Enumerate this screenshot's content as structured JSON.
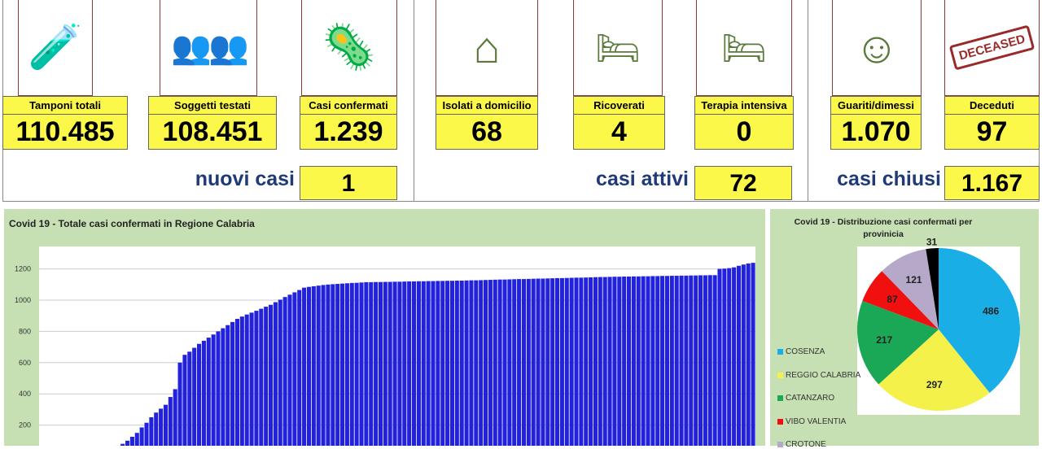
{
  "stats": {
    "tamponi": {
      "label": "Tamponi totali",
      "value": "110.485",
      "icon": "lab-equipment-icon"
    },
    "soggetti": {
      "label": "Soggetti testati",
      "value": "108.451",
      "icon": "people-grid-icon"
    },
    "confermati": {
      "label": "Casi confermati",
      "value": "1.239",
      "icon": "virus-person-icon"
    },
    "isolati": {
      "label": "Isolati a domicilio",
      "value": "68",
      "icon": "house-icon"
    },
    "ricoverati": {
      "label": "Ricoverati",
      "value": "4",
      "icon": "hospital-bed-icon"
    },
    "terapia": {
      "label": "Terapia intensiva",
      "value": "0",
      "icon": "icu-bed-icon"
    },
    "guariti": {
      "label": "Guariti/dimessi",
      "value": "1.070",
      "icon": "healed-person-icon"
    },
    "deceduti": {
      "label": "Deceduti",
      "value": "97",
      "icon": "deceased-stamp-icon"
    }
  },
  "summary": {
    "nuovi": {
      "label": "nuovi casi",
      "value": "1"
    },
    "attivi": {
      "label": "casi attivi",
      "value": "72"
    },
    "chiusi": {
      "label": "casi chiusi",
      "value": "1.167"
    }
  },
  "stamp_text": "DECEASED",
  "chart_data": [
    {
      "type": "bar",
      "title": "Covid 19 - Totale casi confermati in Regione Calabria",
      "xlabel": "",
      "ylabel": "",
      "ylim": [
        0,
        1350
      ],
      "yticks": [
        200,
        400,
        600,
        800,
        1000,
        1200
      ],
      "grid": true,
      "color": "#2222dd",
      "values": [
        1,
        1,
        2,
        3,
        5,
        7,
        10,
        13,
        17,
        21,
        26,
        32,
        39,
        46,
        53,
        60,
        68,
        80,
        100,
        125,
        150,
        185,
        215,
        250,
        280,
        305,
        330,
        380,
        430,
        600,
        650,
        670,
        695,
        720,
        740,
        760,
        780,
        800,
        820,
        840,
        860,
        880,
        895,
        908,
        920,
        932,
        945,
        958,
        970,
        987,
        1003,
        1020,
        1035,
        1050,
        1065,
        1080,
        1085,
        1089,
        1093,
        1097,
        1100,
        1102,
        1104,
        1106,
        1108,
        1110,
        1111,
        1113,
        1115,
        1115,
        1116,
        1116,
        1117,
        1117,
        1118,
        1118,
        1119,
        1120,
        1120,
        1121,
        1121,
        1122,
        1122,
        1123,
        1123,
        1124,
        1124,
        1125,
        1125,
        1126,
        1127,
        1127,
        1128,
        1129,
        1130,
        1131,
        1132,
        1132,
        1133,
        1134,
        1135,
        1135,
        1136,
        1137,
        1138,
        1138,
        1139,
        1140,
        1141,
        1141,
        1142,
        1143,
        1144,
        1144,
        1145,
        1146,
        1147,
        1148,
        1148,
        1149,
        1150,
        1150,
        1151,
        1151,
        1152,
        1152,
        1153,
        1153,
        1154,
        1154,
        1155,
        1155,
        1156,
        1156,
        1157,
        1157,
        1158,
        1158,
        1159,
        1159,
        1160,
        1160,
        1200,
        1202,
        1205,
        1210,
        1220,
        1228,
        1235,
        1239
      ]
    },
    {
      "type": "pie",
      "title": "Covid 19 - Distribuzione casi confermati per provinicia",
      "legend": "left",
      "slices": [
        {
          "name": "COSENZA",
          "value": 486,
          "color": "#1aaee6"
        },
        {
          "name": "REGGIO CALABRIA",
          "value": 297,
          "color": "#f4f24a"
        },
        {
          "name": "CATANZARO",
          "value": 217,
          "color": "#1aa857"
        },
        {
          "name": "VIBO VALENTIA",
          "value": 87,
          "color": "#f01010"
        },
        {
          "name": "CROTONE",
          "value": 121,
          "color": "#b6a8c8"
        },
        {
          "value": 31,
          "color": "#000000"
        }
      ]
    }
  ]
}
